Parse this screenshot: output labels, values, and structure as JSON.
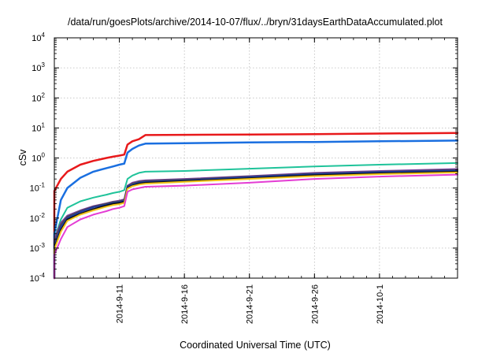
{
  "chart_data": {
    "type": "line",
    "title": "/data/run/goesPlots/archive/2014-10-07/flux/../bryn/31daysEarthDataAccumulated.plot",
    "xlabel": "Coordinated Universal Time (UTC)",
    "ylabel": "cSv",
    "yscale": "log",
    "ylim": [
      0.0001,
      10000
    ],
    "xlim": [
      "2014-09-06",
      "2014-10-07"
    ],
    "grid": true,
    "legend": "none",
    "x_ticks": [
      "2014-9-11",
      "2014-9-16",
      "2014-9-21",
      "2014-9-26",
      "2014-10-1"
    ],
    "y_ticks": [
      {
        "base": "10",
        "exp": "-4",
        "value": 0.0001
      },
      {
        "base": "10",
        "exp": "-3",
        "value": 0.001
      },
      {
        "base": "10",
        "exp": "-2",
        "value": 0.01
      },
      {
        "base": "10",
        "exp": "-1",
        "value": 0.1
      },
      {
        "base": "10",
        "exp": "0",
        "value": 1
      },
      {
        "base": "10",
        "exp": "1",
        "value": 10
      },
      {
        "base": "10",
        "exp": "2",
        "value": 100
      },
      {
        "base": "10",
        "exp": "3",
        "value": 1000
      },
      {
        "base": "10",
        "exp": "4",
        "value": 10000
      }
    ],
    "series": [
      {
        "color": "#e8191b",
        "width": 2.5,
        "points": [
          [
            "2014-09-06",
            0.0001
          ],
          [
            "2014-09-06",
            0.08
          ],
          [
            "2014-09-06T12:00",
            0.2
          ],
          [
            "2014-09-07",
            0.35
          ],
          [
            "2014-09-08",
            0.6
          ],
          [
            "2014-09-09",
            0.8
          ],
          [
            "2014-09-10",
            1.0
          ],
          [
            "2014-09-10T12:00",
            1.1
          ],
          [
            "2014-09-11",
            1.2
          ],
          [
            "2014-09-11T09:00",
            1.3
          ],
          [
            "2014-09-11T15:00",
            2.8
          ],
          [
            "2014-09-12",
            3.6
          ],
          [
            "2014-09-12T12:00",
            4.2
          ],
          [
            "2014-09-13",
            5.8
          ],
          [
            "2014-09-16",
            5.9
          ],
          [
            "2014-09-21",
            6.0
          ],
          [
            "2014-09-26",
            6.2
          ],
          [
            "2014-10-01",
            6.5
          ],
          [
            "2014-10-07",
            6.8
          ]
        ]
      },
      {
        "color": "#1a6fe0",
        "width": 2.5,
        "points": [
          [
            "2014-09-06",
            0.0001
          ],
          [
            "2014-09-06",
            0.003
          ],
          [
            "2014-09-06T12:00",
            0.04
          ],
          [
            "2014-09-07",
            0.1
          ],
          [
            "2014-09-08",
            0.22
          ],
          [
            "2014-09-09",
            0.35
          ],
          [
            "2014-09-10",
            0.46
          ],
          [
            "2014-09-10T12:00",
            0.52
          ],
          [
            "2014-09-11",
            0.6
          ],
          [
            "2014-09-11T09:00",
            0.65
          ],
          [
            "2014-09-11T15:00",
            1.5
          ],
          [
            "2014-09-12",
            2.0
          ],
          [
            "2014-09-12T12:00",
            2.6
          ],
          [
            "2014-09-13",
            3.0
          ],
          [
            "2014-09-16",
            3.1
          ],
          [
            "2014-09-21",
            3.3
          ],
          [
            "2014-09-26",
            3.4
          ],
          [
            "2014-10-01",
            3.6
          ],
          [
            "2014-10-07",
            3.8
          ]
        ]
      },
      {
        "color": "#1fc39a",
        "width": 2,
        "points": [
          [
            "2014-09-06",
            0.0001
          ],
          [
            "2014-09-06",
            0.002
          ],
          [
            "2014-09-06T12:00",
            0.009
          ],
          [
            "2014-09-07",
            0.022
          ],
          [
            "2014-09-08",
            0.036
          ],
          [
            "2014-09-09",
            0.048
          ],
          [
            "2014-09-10",
            0.06
          ],
          [
            "2014-09-10T12:00",
            0.068
          ],
          [
            "2014-09-11",
            0.075
          ],
          [
            "2014-09-11T09:00",
            0.085
          ],
          [
            "2014-09-11T15:00",
            0.2
          ],
          [
            "2014-09-12",
            0.26
          ],
          [
            "2014-09-12T12:00",
            0.32
          ],
          [
            "2014-09-13",
            0.35
          ],
          [
            "2014-09-16",
            0.37
          ],
          [
            "2014-09-21",
            0.44
          ],
          [
            "2014-09-26",
            0.52
          ],
          [
            "2014-10-01",
            0.6
          ],
          [
            "2014-10-07",
            0.68
          ]
        ]
      },
      {
        "color": "#7a3da0",
        "width": 2,
        "points": [
          [
            "2014-09-06",
            0.0001
          ],
          [
            "2014-09-06",
            0.002
          ],
          [
            "2014-09-06T12:00",
            0.007
          ],
          [
            "2014-09-07",
            0.012
          ],
          [
            "2014-09-08",
            0.018
          ],
          [
            "2014-09-09",
            0.025
          ],
          [
            "2014-09-10",
            0.031
          ],
          [
            "2014-09-10T12:00",
            0.035
          ],
          [
            "2014-09-11",
            0.038
          ],
          [
            "2014-09-11T09:00",
            0.042
          ],
          [
            "2014-09-11T15:00",
            0.12
          ],
          [
            "2014-09-12",
            0.15
          ],
          [
            "2014-09-12T12:00",
            0.17
          ],
          [
            "2014-09-13",
            0.18
          ],
          [
            "2014-09-16",
            0.2
          ],
          [
            "2014-09-21",
            0.25
          ],
          [
            "2014-09-26",
            0.32
          ],
          [
            "2014-10-01",
            0.37
          ],
          [
            "2014-10-07",
            0.43
          ]
        ]
      },
      {
        "color": "#4a4a4a",
        "width": 2,
        "points": [
          [
            "2014-09-06",
            0.0001
          ],
          [
            "2014-09-06",
            0.0015
          ],
          [
            "2014-09-06T12:00",
            0.006
          ],
          [
            "2014-09-07",
            0.011
          ],
          [
            "2014-09-08",
            0.017
          ],
          [
            "2014-09-09",
            0.024
          ],
          [
            "2014-09-10",
            0.03
          ],
          [
            "2014-09-10T12:00",
            0.034
          ],
          [
            "2014-09-11",
            0.036
          ],
          [
            "2014-09-11T09:00",
            0.04
          ],
          [
            "2014-09-11T15:00",
            0.115
          ],
          [
            "2014-09-12",
            0.14
          ],
          [
            "2014-09-12T12:00",
            0.16
          ],
          [
            "2014-09-13",
            0.17
          ],
          [
            "2014-09-16",
            0.19
          ],
          [
            "2014-09-21",
            0.24
          ],
          [
            "2014-09-26",
            0.3
          ],
          [
            "2014-10-01",
            0.35
          ],
          [
            "2014-10-07",
            0.4
          ]
        ]
      },
      {
        "color": "#1d3aa6",
        "width": 2,
        "points": [
          [
            "2014-09-06",
            0.0001
          ],
          [
            "2014-09-06",
            0.0012
          ],
          [
            "2014-09-06T12:00",
            0.005
          ],
          [
            "2014-09-07",
            0.01
          ],
          [
            "2014-09-08",
            0.016
          ],
          [
            "2014-09-09",
            0.023
          ],
          [
            "2014-09-10",
            0.028
          ],
          [
            "2014-09-10T12:00",
            0.032
          ],
          [
            "2014-09-11",
            0.034
          ],
          [
            "2014-09-11T09:00",
            0.038
          ],
          [
            "2014-09-11T15:00",
            0.11
          ],
          [
            "2014-09-12",
            0.13
          ],
          [
            "2014-09-12T12:00",
            0.15
          ],
          [
            "2014-09-13",
            0.16
          ],
          [
            "2014-09-16",
            0.18
          ],
          [
            "2014-09-21",
            0.23
          ],
          [
            "2014-09-26",
            0.29
          ],
          [
            "2014-10-01",
            0.34
          ],
          [
            "2014-10-07",
            0.38
          ]
        ]
      },
      {
        "color": "#111111",
        "width": 2,
        "points": [
          [
            "2014-09-06",
            0.0001
          ],
          [
            "2014-09-06",
            0.001
          ],
          [
            "2014-09-06T12:00",
            0.004
          ],
          [
            "2014-09-07",
            0.009
          ],
          [
            "2014-09-08",
            0.014
          ],
          [
            "2014-09-09",
            0.02
          ],
          [
            "2014-09-10",
            0.026
          ],
          [
            "2014-09-10T12:00",
            0.03
          ],
          [
            "2014-09-11",
            0.032
          ],
          [
            "2014-09-11T09:00",
            0.035
          ],
          [
            "2014-09-11T15:00",
            0.1
          ],
          [
            "2014-09-12",
            0.12
          ],
          [
            "2014-09-12T12:00",
            0.14
          ],
          [
            "2014-09-13",
            0.15
          ],
          [
            "2014-09-16",
            0.17
          ],
          [
            "2014-09-21",
            0.21
          ],
          [
            "2014-09-26",
            0.27
          ],
          [
            "2014-10-01",
            0.31
          ],
          [
            "2014-10-07",
            0.35
          ]
        ]
      },
      {
        "color": "#f2c41a",
        "width": 2,
        "points": [
          [
            "2014-09-06",
            0.0001
          ],
          [
            "2014-09-06",
            0.0009
          ],
          [
            "2014-09-06T12:00",
            0.0035
          ],
          [
            "2014-09-07",
            0.008
          ],
          [
            "2014-09-08",
            0.013
          ],
          [
            "2014-09-09",
            0.018
          ],
          [
            "2014-09-10",
            0.024
          ],
          [
            "2014-09-10T12:00",
            0.027
          ],
          [
            "2014-09-11",
            0.029
          ],
          [
            "2014-09-11T09:00",
            0.032
          ],
          [
            "2014-09-11T15:00",
            0.095
          ],
          [
            "2014-09-12",
            0.115
          ],
          [
            "2014-09-12T12:00",
            0.13
          ],
          [
            "2014-09-13",
            0.14
          ],
          [
            "2014-09-16",
            0.16
          ],
          [
            "2014-09-21",
            0.2
          ],
          [
            "2014-09-26",
            0.25
          ],
          [
            "2014-10-01",
            0.29
          ],
          [
            "2014-10-07",
            0.33
          ]
        ]
      },
      {
        "color": "#e43dd4",
        "width": 2,
        "points": [
          [
            "2014-09-06",
            0.0001
          ],
          [
            "2014-09-06",
            0.0006
          ],
          [
            "2014-09-06T12:00",
            0.002
          ],
          [
            "2014-09-07",
            0.005
          ],
          [
            "2014-09-08",
            0.009
          ],
          [
            "2014-09-09",
            0.013
          ],
          [
            "2014-09-10",
            0.017
          ],
          [
            "2014-09-10T12:00",
            0.02
          ],
          [
            "2014-09-11",
            0.022
          ],
          [
            "2014-09-11T09:00",
            0.025
          ],
          [
            "2014-09-11T15:00",
            0.075
          ],
          [
            "2014-09-12",
            0.09
          ],
          [
            "2014-09-12T12:00",
            0.1
          ],
          [
            "2014-09-13",
            0.11
          ],
          [
            "2014-09-16",
            0.12
          ],
          [
            "2014-09-21",
            0.15
          ],
          [
            "2014-09-26",
            0.2
          ],
          [
            "2014-10-01",
            0.24
          ],
          [
            "2014-10-07",
            0.28
          ]
        ]
      }
    ]
  }
}
